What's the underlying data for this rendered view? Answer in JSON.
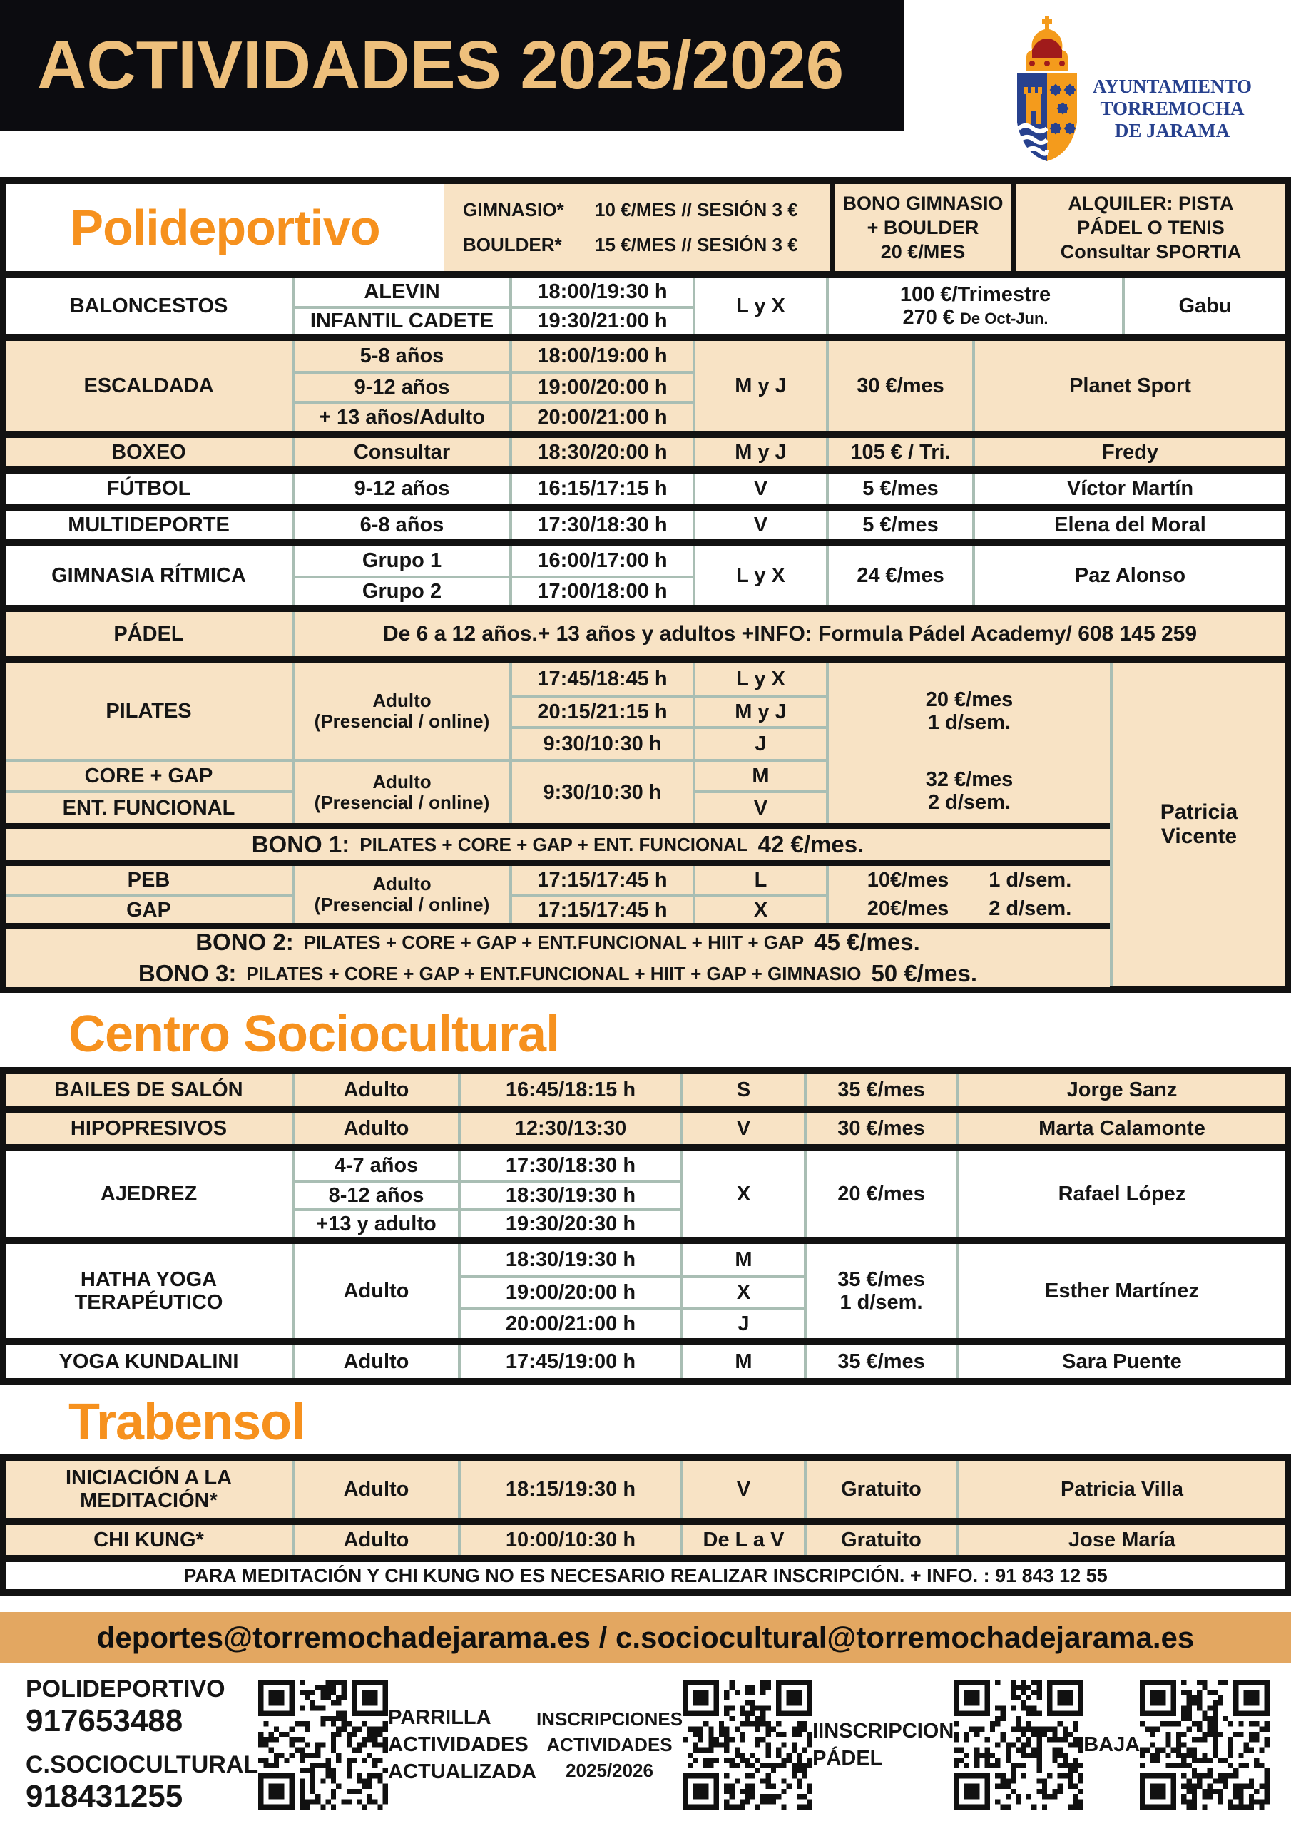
{
  "colors": {
    "accent_orange": "#f6911e",
    "cream": "#f8e3c5",
    "band_tan": "#e3a761",
    "header_gold": "#eec07c",
    "logo_blue": "#27418e",
    "bar_black": "#121212",
    "divider_sage": "#a9beb4"
  },
  "header": {
    "title": "ACTIVIDADES 2025/2026",
    "logo_line1": "AYUNTAMIENTO",
    "logo_line2": "TORREMOCHA",
    "logo_line3": "DE JARAMA"
  },
  "poli": {
    "title": "Polideportivo",
    "gim_label": "GIMNASIO*",
    "gim_price": "10 €/MES // SESIÓN 3 €",
    "boulder_label": "BOULDER*",
    "boulder_price": "15 €/MES // SESIÓN 3 €",
    "bono_box": "BONO GIMNASIO\n+ BOULDER\n20 €/MES",
    "alquiler_box": "ALQUILER: PISTA\nPÁDEL O TENIS\nConsultar SPORTIA",
    "baloncestos": {
      "name": "BALONCESTOS",
      "g1": "ALEVIN",
      "h1": "18:00/19:30 h",
      "g2": "INFANTIL CADETE",
      "h2": "19:30/21:00 h",
      "days": "L y X",
      "price1": "100 €/Trimestre",
      "price2": "270 €",
      "price2_note": "De Oct-Jun.",
      "monitor": "Gabu"
    },
    "escaldada": {
      "name": "ESCALDADA",
      "g1": "5-8 años",
      "h1": "18:00/19:00 h",
      "g2": "9-12 años",
      "h2": "19:00/20:00 h",
      "g3": "+ 13 años/Adulto",
      "h3": "20:00/21:00 h",
      "days": "M y J",
      "price": "30 €/mes",
      "monitor": "Planet Sport"
    },
    "boxeo": {
      "name": "BOXEO",
      "group": "Consultar",
      "hours": "18:30/20:00 h",
      "days": "M y J",
      "price": "105 € / Tri.",
      "monitor": "Fredy"
    },
    "futbol": {
      "name": "FÚTBOL",
      "group": "9-12 años",
      "hours": "16:15/17:15 h",
      "days": "V",
      "price": "5 €/mes",
      "monitor": "Víctor Martín"
    },
    "multideporte": {
      "name": "MULTIDEPORTE",
      "group": "6-8 años",
      "hours": "17:30/18:30 h",
      "days": "V",
      "price": "5 €/mes",
      "monitor": "Elena del Moral"
    },
    "gimnasia": {
      "name": "GIMNASIA RÍTMICA",
      "g1": "Grupo 1",
      "h1": "16:00/17:00 h",
      "g2": "Grupo 2",
      "h2": "17:00/18:00 h",
      "days": "L y X",
      "price": "24 €/mes",
      "monitor": "Paz Alonso"
    },
    "padel": {
      "name": "PÁDEL",
      "info": "De 6 a 12 años.+ 13 años y adultos  +INFO: Formula Pádel Academy/ 608 145 259"
    },
    "pilates": {
      "name": "PILATES",
      "group": "Adulto\n(Presencial / online)",
      "h1": "17:45/18:45 h",
      "d1": "L y X",
      "h2": "20:15/21:15 h",
      "d2": "M y J",
      "h3": "9:30/10:30 h",
      "d3": "J",
      "price": "20 €/mes\n1 d/sem."
    },
    "core": {
      "name1": "CORE + GAP",
      "name2": "ENT. FUNCIONAL",
      "group": "Adulto\n(Presencial / online)",
      "hours": "9:30/10:30 h",
      "d1": "M",
      "d2": "V",
      "price": "32 €/mes\n2 d/sem."
    },
    "monitor_block": "Patricia\nVicente",
    "bono1_label": "BONO 1:",
    "bono1_text": "PILATES + CORE + GAP + ENT. FUNCIONAL",
    "bono1_price": "42 €/mes.",
    "pebgap": {
      "name1": "PEB",
      "name2": "GAP",
      "group": "Adulto\n(Presencial / online)",
      "h1": "17:15/17:45 h",
      "d1": "L",
      "p1a": "10€/mes",
      "p1b": "1 d/sem.",
      "h2": "17:15/17:45 h",
      "d2": "X",
      "p2a": "20€/mes",
      "p2b": "2 d/sem."
    },
    "bono2_label": "BONO 2:",
    "bono2_text": "PILATES + CORE + GAP + ENT.FUNCIONAL + HIIT + GAP",
    "bono2_price": "45 €/mes.",
    "bono3_label": "BONO 3:",
    "bono3_text": "PILATES + CORE + GAP + ENT.FUNCIONAL + HIIT + GAP + GIMNASIO",
    "bono3_price": "50 €/mes."
  },
  "centro": {
    "title": "Centro Sociocultural",
    "bailes": {
      "name": "BAILES DE SALÓN",
      "group": "Adulto",
      "hours": "16:45/18:15 h",
      "days": "S",
      "price": "35 €/mes",
      "monitor": "Jorge Sanz"
    },
    "hipopresivos": {
      "name": "HIPOPRESIVOS",
      "group": "Adulto",
      "hours": "12:30/13:30",
      "days": "V",
      "price": "30 €/mes",
      "monitor": "Marta Calamonte"
    },
    "ajedrez": {
      "name": "AJEDREZ",
      "g1": "4-7 años",
      "h1": "17:30/18:30 h",
      "g2": "8-12 años",
      "h2": "18:30/19:30 h",
      "g3": "+13 y adulto",
      "h3": "19:30/20:30 h",
      "days": "X",
      "price": "20 €/mes",
      "monitor": "Rafael López"
    },
    "hatha": {
      "name": "HATHA YOGA\nTERAPÉUTICO",
      "group": "Adulto",
      "h1": "18:30/19:30 h",
      "d1": "M",
      "h2": "19:00/20:00 h",
      "d2": "X",
      "h3": "20:00/21:00 h",
      "d3": "J",
      "price": "35 €/mes\n1 d/sem.",
      "monitor": "Esther Martínez"
    },
    "kundalini": {
      "name": "YOGA KUNDALINI",
      "group": "Adulto",
      "hours": "17:45/19:00 h",
      "days": "M",
      "price": "35 €/mes",
      "monitor": "Sara Puente"
    }
  },
  "trabensol": {
    "title": "Trabensol",
    "meditacion": {
      "name": "INICIACIÓN A LA\nMEDITACIÓN*",
      "group": "Adulto",
      "hours": "18:15/19:30 h",
      "days": "V",
      "price": "Gratuito",
      "monitor": "Patricia Villa"
    },
    "chikung": {
      "name": "CHI KUNG*",
      "group": "Adulto",
      "hours": "10:00/10:30 h",
      "days": "De L a V",
      "price": "Gratuito",
      "monitor": "Jose María"
    },
    "note": "PARA MEDITACIÓN Y CHI KUNG NO ES NECESARIO REALIZAR INSCRIPCIÓN. + INFO. : 91 843 12 55"
  },
  "footer": {
    "emails": "deportes@torremochadejarama.es  /  c.sociocultural@torremochadejarama.es",
    "contact1_label": "POLIDEPORTIVO",
    "contact1_phone": "917653488",
    "contact2_label": "C.SOCIOCULTURAL",
    "contact2_phone": "918431255",
    "qr1_caption": "PARRILLA\nACTIVIDADES\nACTUALIZADA",
    "qr2_caption": "INSCRIPCIONES\nACTIVIDADES\n2025/2026",
    "qr3_caption": "IINSCRIPCION\nPÁDEL",
    "qr4_caption": "BAJA"
  }
}
